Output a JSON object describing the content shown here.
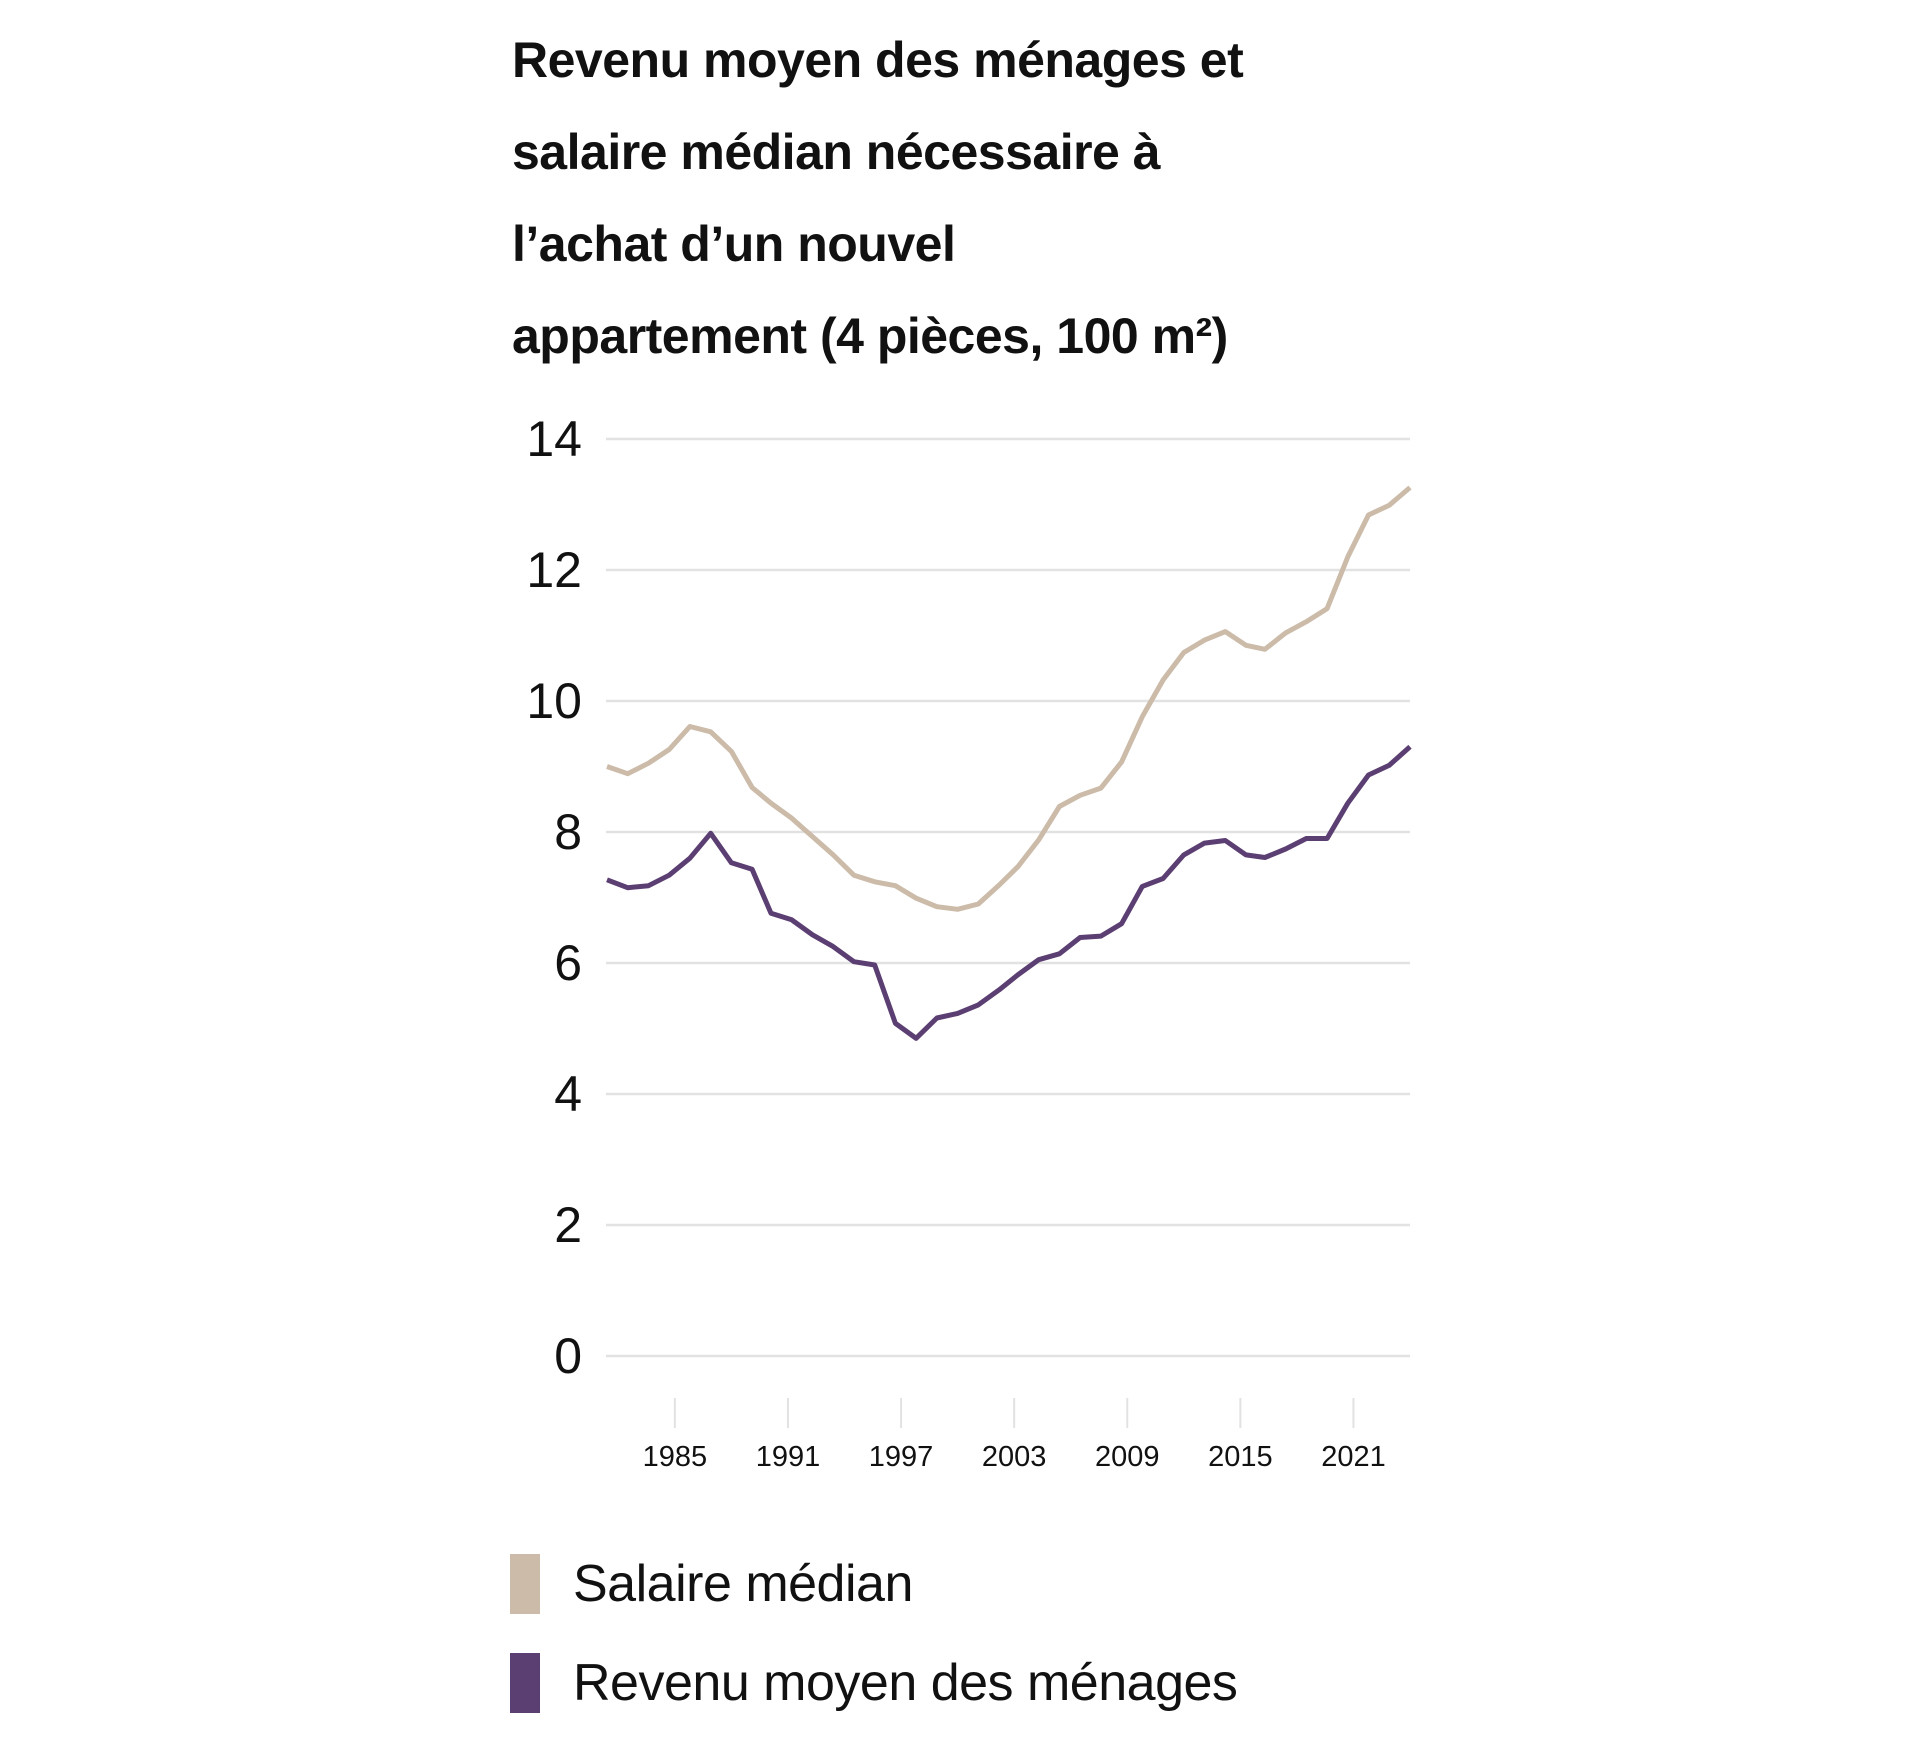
{
  "chart_data": {
    "type": "line",
    "title": "Revenu moyen des ménages et salaire médian nécessaire à l’achat d’un nouvel appartement (4 pièces, 100 m²)",
    "title_lines": [
      "Revenu moyen des ménages et",
      "salaire médian nécessaire à",
      "l’achat d’un nouvel",
      "appartement (4 pièces, 100 m²)"
    ],
    "xlabel": "",
    "ylabel": "",
    "xlim": [
      1981.4,
      2024.0
    ],
    "ylim": [
      0,
      14
    ],
    "yticks": [
      0,
      2,
      4,
      6,
      8,
      10,
      12,
      14
    ],
    "xticks": [
      1985,
      1991,
      1997,
      2003,
      2009,
      2015,
      2021
    ],
    "grid": "horizontal",
    "legend_placement": "bottom",
    "x": [
      1981.4,
      1982.5,
      1983.6,
      1984.7,
      1985.8,
      1986.9,
      1988.0,
      1989.1,
      1990.1,
      1991.2,
      1992.3,
      1993.4,
      1994.5,
      1995.6,
      1996.7,
      1997.8,
      1998.9,
      2000.0,
      2001.1,
      2002.2,
      2003.2,
      2004.3,
      2005.4,
      2006.5,
      2007.6,
      2008.7,
      2009.8,
      2010.9,
      2012.0,
      2013.1,
      2014.2,
      2015.3,
      2016.3,
      2017.4,
      2018.5,
      2019.6,
      2020.7,
      2021.8,
      2022.9,
      2024.0
    ],
    "series": [
      {
        "name": "Salaire médian",
        "color": "#cbbba8",
        "values": [
          9.0,
          8.89,
          9.05,
          9.26,
          9.61,
          9.53,
          9.23,
          8.68,
          8.44,
          8.21,
          7.93,
          7.65,
          7.34,
          7.24,
          7.18,
          6.99,
          6.86,
          6.82,
          6.9,
          7.19,
          7.47,
          7.88,
          8.39,
          8.56,
          8.67,
          9.07,
          9.76,
          10.32,
          10.74,
          10.93,
          11.06,
          10.85,
          10.79,
          11.04,
          11.21,
          11.41,
          12.2,
          12.84,
          12.99,
          13.26
        ]
      },
      {
        "name": "Revenu moyen des ménages",
        "color": "#5c3f72",
        "values": [
          7.27,
          7.15,
          7.18,
          7.34,
          7.6,
          7.98,
          7.53,
          7.43,
          6.76,
          6.66,
          6.43,
          6.25,
          6.02,
          5.97,
          5.08,
          4.85,
          5.16,
          5.23,
          5.36,
          5.59,
          5.82,
          6.05,
          6.14,
          6.39,
          6.41,
          6.6,
          7.17,
          7.29,
          7.65,
          7.83,
          7.87,
          7.65,
          7.61,
          7.74,
          7.9,
          7.9,
          8.44,
          8.87,
          9.02,
          9.3
        ]
      }
    ]
  }
}
